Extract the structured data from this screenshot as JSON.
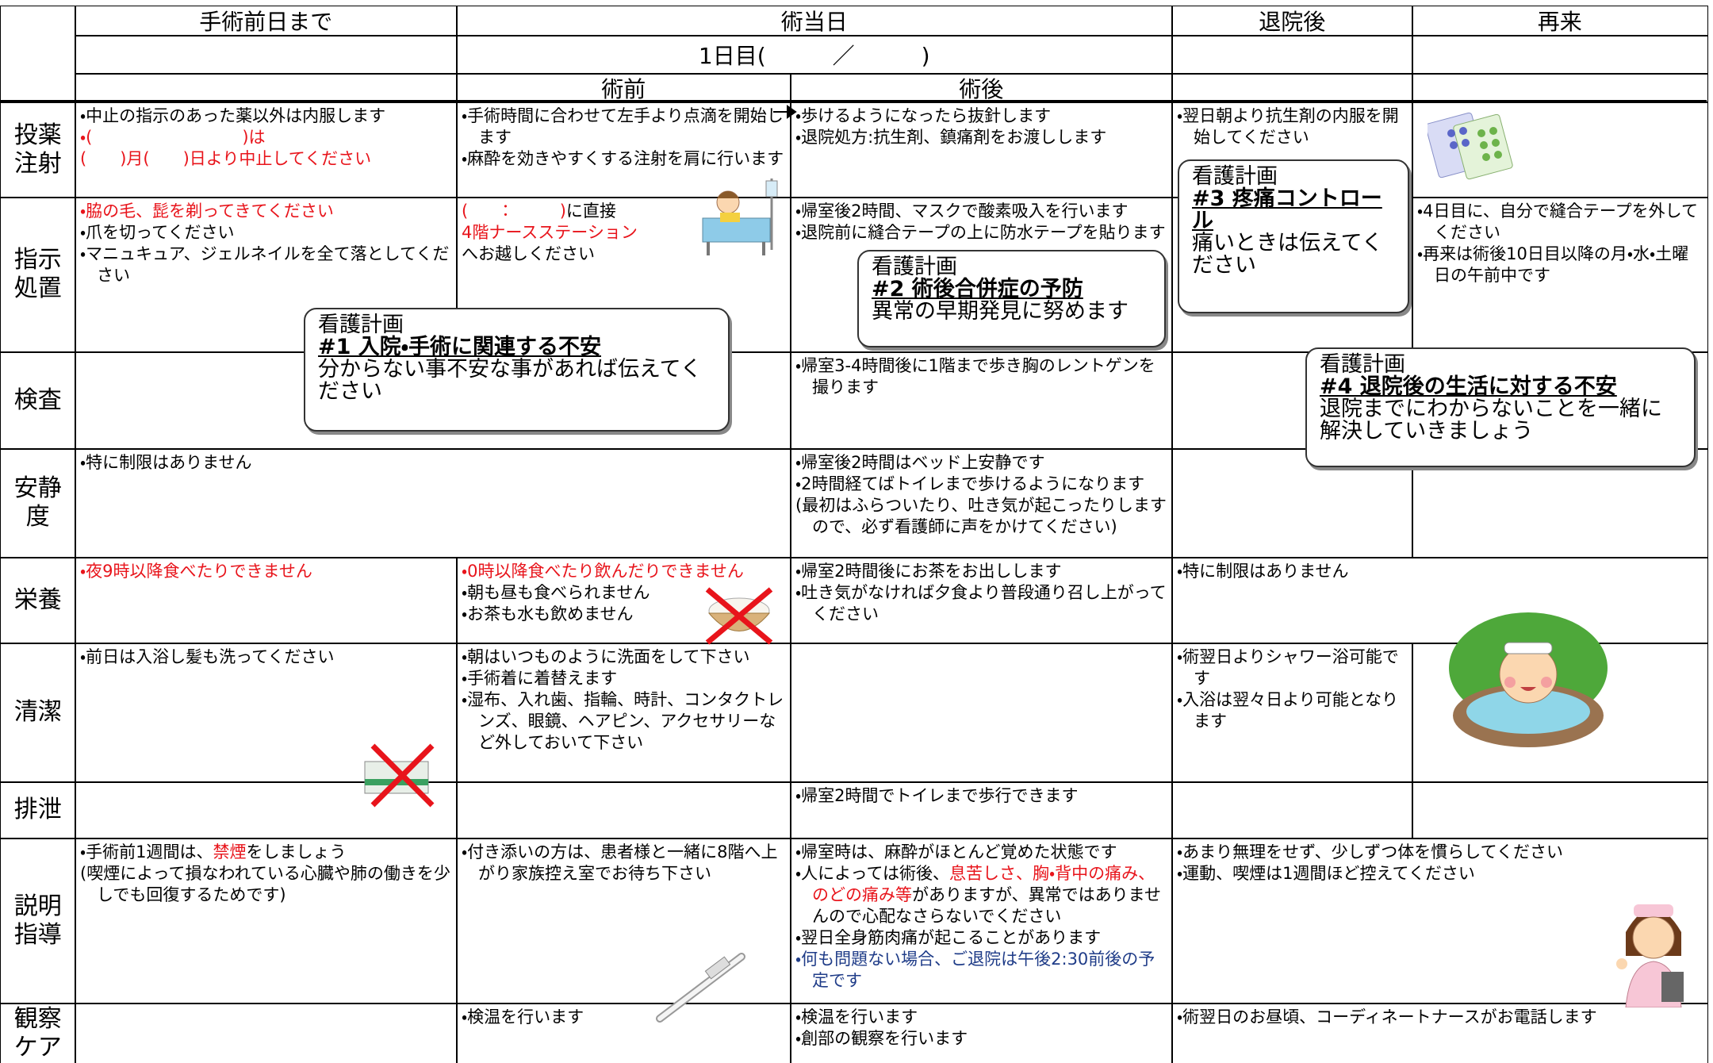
{
  "header": {
    "columns": [
      "手術前日まで",
      "術当日",
      "退院後",
      "再来"
    ],
    "day": "1日目(　　　／　　　)",
    "subcolumns": [
      "術前",
      "術後"
    ]
  },
  "rows": [
    {
      "label": "投薬注射",
      "cells": [
        [
          "・中止の指示のあった薬以外は内服します",
          {
            "text": "・(　　　　　　　　　)は",
            "color": "#e8141b"
          },
          {
            "text": "(　　)月(　　)日より中止してください",
            "color": "#e8141b"
          }
        ],
        [
          "・手術時間に合わせて左手より点滴を開始します",
          "・麻酔を効きやすくする注射を肩に行います"
        ],
        [
          "・歩けるようになったら抜針します",
          "・退院処方:抗生剤、鎮痛剤をお渡しします"
        ],
        [
          "・翌日朝より抗生剤の内服を開始してください"
        ],
        []
      ]
    },
    {
      "label": "指示処置",
      "cells": [
        [
          {
            "text": "・脇の毛、髭を剃ってきてください",
            "color": "#e8141b"
          },
          "・爪を切ってください",
          "・マニュキュア、ジェルネイルを全て落としてください"
        ],
        [
          [
            {
              "text": "(　　：　　　)",
              "color": "#e8141b"
            },
            "に直接"
          ],
          {
            "text": "4階ナースステーション",
            "color": "#e8141b"
          },
          "へお越しください"
        ],
        [
          "・帰室後2時間、マスクで酸素吸入を行います",
          "・退院前に縫合テープの上に防水テープを貼ります"
        ],
        [],
        [
          "・4日目に、自分で縫合テープを外してください",
          "・再来は術後10日目以降の月・水・土曜日の午前中です"
        ]
      ]
    },
    {
      "label": "検査",
      "cells": [
        [],
        [
          "・帰室3-4時間後に1階まで歩き胸のレントゲンを撮ります"
        ],
        [],
        []
      ]
    },
    {
      "label": "安静度",
      "cells": [
        [
          "・特に制限はありません"
        ],
        [
          "・帰室後2時間はベッド上安静です",
          "・2時間経てばトイレまで歩けるようになります",
          "(最初はふらついたり、吐き気が起こったりしますので、必ず看護師に声をかけてください)"
        ],
        [],
        []
      ]
    },
    {
      "label": "栄養",
      "cells": [
        [
          {
            "text": "・夜9時以降食べたりできません",
            "color": "#e8141b"
          }
        ],
        [
          {
            "text": "・0時以降食べたり飲んだりできません",
            "color": "#e8141b"
          },
          "・朝も昼も食べられません",
          "・お茶も水も飲めません"
        ],
        [
          "・帰室2時間後にお茶をお出しします",
          "・吐き気がなければ夕食より普段通り召し上がってください"
        ],
        [
          "・特に制限はありません"
        ]
      ]
    },
    {
      "label": "清潔",
      "cells": [
        [
          "・前日は入浴し髪も洗ってください"
        ],
        [
          "・朝はいつものように洗面をして下さい",
          "・手術着に着替えます",
          "・湿布、入れ歯、指輪、時計、コンタクトレンズ、眼鏡、ヘアピン、アクセサリーなど外しておいて下さい"
        ],
        [],
        [
          "・術翌日よりシャワー浴可能です",
          "・入浴は翌々日より可能となります"
        ],
        []
      ]
    },
    {
      "label": "排泄",
      "cells": [
        [],
        [],
        [
          "・帰室2時間でトイレまで歩行できます"
        ],
        [],
        []
      ]
    },
    {
      "label": "説明指導",
      "cells": [
        [
          [
            "・手術前1週間は、",
            {
              "text": "禁煙",
              "color": "#e8141b"
            },
            "をしましょう"
          ],
          "(喫煙によって損なわれている心臓や肺の働きを少しでも回復するためです)"
        ],
        [
          "・付き添いの方は、患者様と一緒に8階へ上がり家族控え室でお待ち下さい"
        ],
        [
          "・帰室時は、麻酔がほとんど覚めた状態です",
          [
            "・人によっては術後、",
            {
              "text": "息苦しさ、胸・背中の痛み、のどの痛み等",
              "color": "#e8141b"
            },
            "がありますが、異常ではありませんので心配なさらないでください"
          ],
          "・翌日全身筋肉痛が起こることがあります",
          {
            "text": "・何も問題ない場合、ご退院は午後2:30前後の予定です",
            "color": "#1f3c88"
          }
        ],
        [
          "・あまり無理をせず、少しずつ体を慣らしてください",
          "・運動、喫煙は1週間ほど控えてください"
        ]
      ]
    },
    {
      "label": "観察ケア",
      "cells": [
        [],
        [
          "・検温を行います"
        ],
        [
          "・検温を行います",
          "・創部の観察を行います"
        ],
        [
          "・術翌日のお昼頃、コーディネートナースがお電話します"
        ]
      ]
    }
  ],
  "balloons": [
    {
      "title": "看護計画",
      "heading": "#1 入院・手術に関連する不安",
      "body": "分からない事不安な事があれば伝えてください"
    },
    {
      "title": "看護計画",
      "heading": "#2 術後合併症の予防",
      "body": "異常の早期発見に努めます"
    },
    {
      "title": "看護計画",
      "heading": "#3 疼痛コントロール",
      "body": "痛いときは伝えてください"
    },
    {
      "title": "看護計画",
      "heading": "#4 退院後の生活に対する不安",
      "body": "退院までにわからないことを一緒に解決していきましょう"
    }
  ]
}
